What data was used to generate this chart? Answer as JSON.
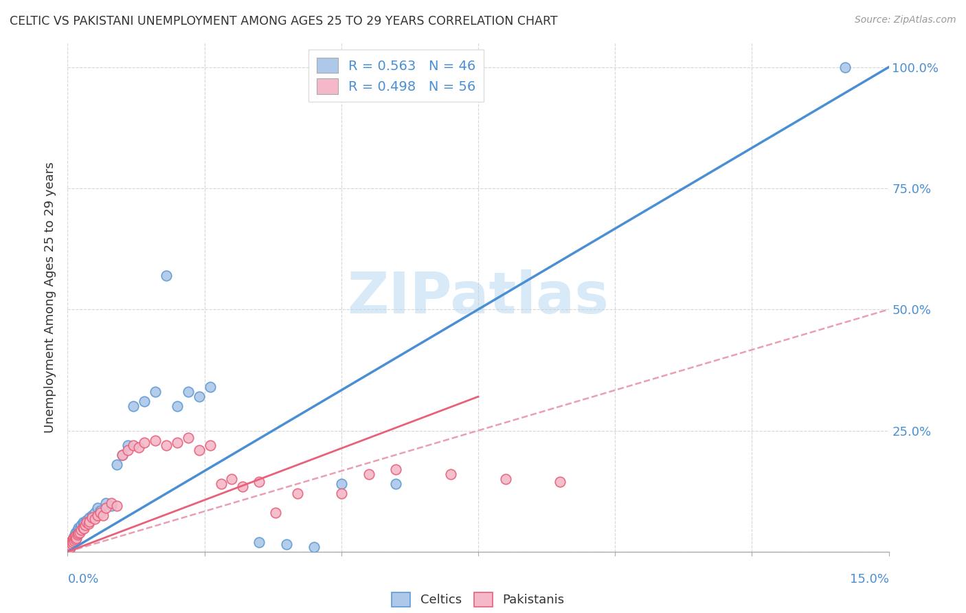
{
  "title": "CELTIC VS PAKISTANI UNEMPLOYMENT AMONG AGES 25 TO 29 YEARS CORRELATION CHART",
  "source": "Source: ZipAtlas.com",
  "ylabel": "Unemployment Among Ages 25 to 29 years",
  "xlim": [
    0.0,
    15.0
  ],
  "ylim": [
    0.0,
    105.0
  ],
  "celtic_R": 0.563,
  "celtic_N": 46,
  "pakistani_R": 0.498,
  "pakistani_N": 56,
  "celtic_color": "#adc8e8",
  "celtic_edge_color": "#5b9bd5",
  "pakistani_color": "#f5b8c8",
  "pakistani_edge_color": "#e8607a",
  "celtic_line_color": "#4a8fd4",
  "pakistani_solid_color": "#e8607a",
  "pakistani_dash_color": "#e8a0b0",
  "background_color": "#ffffff",
  "grid_color": "#cccccc",
  "title_color": "#333333",
  "axis_label_color": "#4a8fd4",
  "watermark_text": "ZIPatlas",
  "watermark_color": "#d8eaf8",
  "celtic_x": [
    0.02,
    0.03,
    0.04,
    0.05,
    0.06,
    0.07,
    0.08,
    0.09,
    0.1,
    0.11,
    0.12,
    0.13,
    0.14,
    0.15,
    0.16,
    0.18,
    0.2,
    0.22,
    0.25,
    0.28,
    0.3,
    0.35,
    0.4,
    0.45,
    0.5,
    0.55,
    0.6,
    0.7,
    0.8,
    0.9,
    1.0,
    1.1,
    1.2,
    1.4,
    1.6,
    1.8,
    2.0,
    2.2,
    2.4,
    2.6,
    3.5,
    4.0,
    4.5,
    5.0,
    6.0,
    14.2
  ],
  "celtic_y": [
    1.0,
    1.5,
    0.8,
    2.0,
    1.2,
    1.8,
    1.5,
    2.5,
    2.0,
    3.0,
    2.5,
    3.5,
    2.8,
    4.0,
    3.5,
    4.5,
    5.0,
    4.8,
    5.5,
    6.0,
    5.8,
    6.5,
    7.0,
    7.5,
    8.0,
    9.0,
    8.5,
    10.0,
    9.5,
    18.0,
    20.0,
    22.0,
    30.0,
    31.0,
    33.0,
    57.0,
    30.0,
    33.0,
    32.0,
    34.0,
    2.0,
    1.5,
    1.0,
    14.0,
    14.0,
    100.0
  ],
  "pakistani_x": [
    0.02,
    0.03,
    0.04,
    0.05,
    0.06,
    0.07,
    0.08,
    0.09,
    0.1,
    0.11,
    0.12,
    0.13,
    0.14,
    0.15,
    0.16,
    0.18,
    0.2,
    0.22,
    0.25,
    0.28,
    0.3,
    0.32,
    0.35,
    0.38,
    0.4,
    0.45,
    0.5,
    0.55,
    0.6,
    0.65,
    0.7,
    0.8,
    0.9,
    1.0,
    1.1,
    1.2,
    1.3,
    1.4,
    1.6,
    1.8,
    2.0,
    2.2,
    2.4,
    2.6,
    2.8,
    3.0,
    3.2,
    3.5,
    3.8,
    4.2,
    5.0,
    5.5,
    6.0,
    7.0,
    8.0,
    9.0
  ],
  "pakistani_y": [
    1.0,
    1.5,
    0.8,
    2.0,
    1.2,
    1.8,
    1.5,
    2.5,
    2.0,
    2.8,
    2.3,
    3.0,
    2.5,
    3.2,
    2.8,
    3.5,
    3.8,
    4.0,
    4.5,
    5.0,
    4.8,
    5.5,
    6.0,
    5.8,
    6.2,
    7.0,
    6.8,
    7.5,
    8.0,
    7.5,
    9.0,
    10.0,
    9.5,
    20.0,
    21.0,
    22.0,
    21.5,
    22.5,
    23.0,
    22.0,
    22.5,
    23.5,
    21.0,
    22.0,
    14.0,
    15.0,
    13.5,
    14.5,
    8.0,
    12.0,
    12.0,
    16.0,
    17.0,
    16.0,
    15.0,
    14.5
  ]
}
